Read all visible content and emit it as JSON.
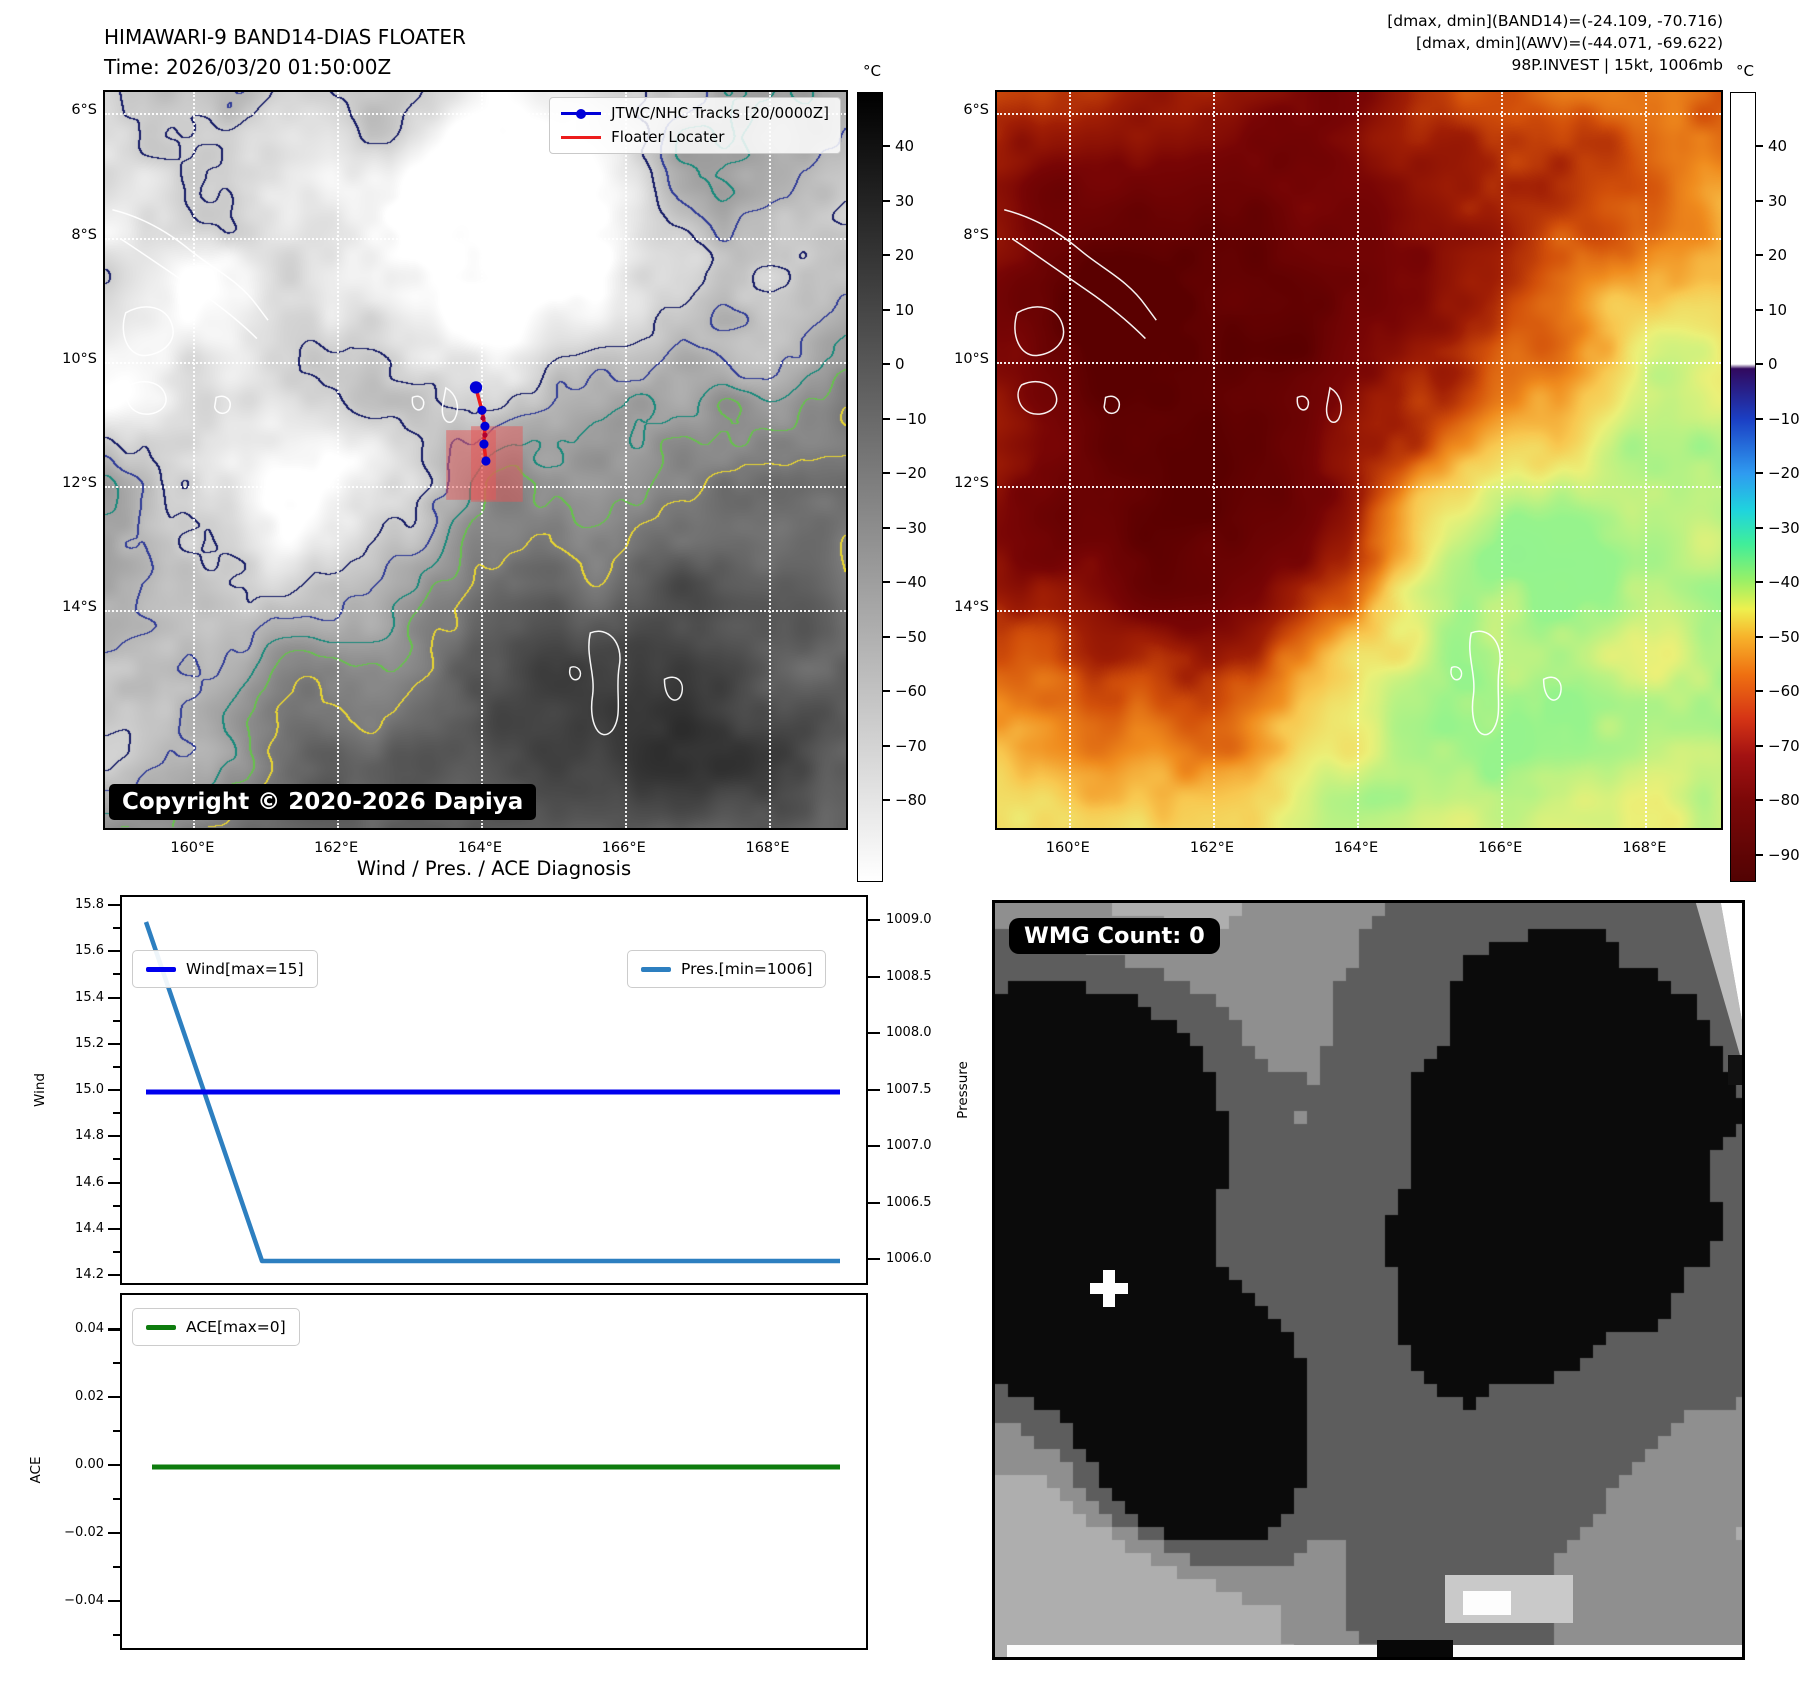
{
  "header": {
    "title": "HIMAWARI-9 BAND14-DIAS FLOATER",
    "time": "Time: 2026/03/20 01:50:00Z",
    "metrics_band14": "[dmax, dmin](BAND14)=(-24.109, -70.716)",
    "metrics_awv": "[dmax, dmin](AWV)=(-44.071, -69.622)",
    "storm": "98P.INVEST | 15kt, 1006mb"
  },
  "band14_map": {
    "legend_tracks": "JTWC/NHC Tracks [20/0000Z]",
    "legend_floater": "Floater Locater",
    "copyright": "Copyright © 2020-2026 Dapiya",
    "lat_ticks": [
      "6°S",
      "8°S",
      "10°S",
      "12°S",
      "14°S"
    ],
    "lon_ticks": [
      "160°E",
      "162°E",
      "164°E",
      "166°E",
      "168°E"
    ],
    "colorbar_unit": "°C",
    "colorbar_ticks": [
      40,
      30,
      20,
      10,
      0,
      -10,
      -20,
      -30,
      -40,
      -50,
      -60,
      -70,
      -80
    ]
  },
  "awv_map": {
    "lat_ticks": [
      "6°S",
      "8°S",
      "10°S",
      "12°S",
      "14°S"
    ],
    "lon_ticks": [
      "160°E",
      "162°E",
      "164°E",
      "166°E",
      "168°E"
    ],
    "colorbar_unit": "°C",
    "colorbar_ticks": [
      40,
      30,
      20,
      10,
      0,
      -10,
      -20,
      -30,
      -40,
      -50,
      -60,
      -70,
      -80,
      -90
    ]
  },
  "wmg_panel": {
    "count": "WMG Count: 0"
  },
  "chart_data": {
    "type": "line",
    "title": "Wind / Pres. / ACE Diagnosis",
    "subplots": [
      {
        "ylabel_left": "Wind",
        "ylabel_right": "Pressure",
        "yticks_left": [
          15.8,
          15.6,
          15.4,
          15.2,
          15.0,
          14.8,
          14.6,
          14.4,
          14.2
        ],
        "yticks_right": [
          1009.0,
          1008.5,
          1008.0,
          1007.5,
          1007.0,
          1006.5,
          1006.0
        ],
        "ylim_left": [
          14.15,
          15.85
        ],
        "ylim_right": [
          1005.9,
          1009.1
        ],
        "series": [
          {
            "name": "Wind[max=15]",
            "color": "#0000ee",
            "axis": "left",
            "x_frac": [
              0.0,
              1.0
            ],
            "values": [
              15,
              15
            ]
          },
          {
            "name": "Pres.[min=1006]",
            "color": "#2d7fc0",
            "axis": "right",
            "x_frac": [
              0.0,
              0.17,
              1.0
            ],
            "values": [
              1009.0,
              1006.0,
              1006.0
            ]
          }
        ]
      },
      {
        "ylabel_left": "ACE",
        "yticks_left": [
          0.04,
          0.02,
          0,
          -0.02,
          -0.04
        ],
        "ylim_left": [
          -0.055,
          0.05
        ],
        "series": [
          {
            "name": "ACE[max=0]",
            "color": "#0e7c0e",
            "axis": "left",
            "x_frac": [
              0.0,
              1.0
            ],
            "values": [
              0,
              0
            ]
          }
        ]
      }
    ],
    "x_axis_labels_visible": false
  },
  "colors": {
    "track_blue": "#0000d8",
    "floater_red": "#ec1c1c",
    "floater_area_pink": "rgba(227,87,87,0.5)",
    "contour_yellow": "#e8d532",
    "contour_green": "#67c14d",
    "contour_teal": "#17897b",
    "contour_navy": "#2e3a97",
    "gridline_white": "#ffffff"
  }
}
